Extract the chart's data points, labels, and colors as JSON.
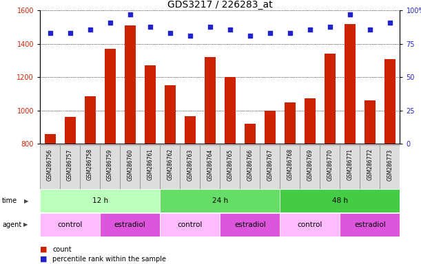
{
  "title": "GDS3217 / 226283_at",
  "samples": [
    "GSM286756",
    "GSM286757",
    "GSM286758",
    "GSM286759",
    "GSM286760",
    "GSM286761",
    "GSM286762",
    "GSM286763",
    "GSM286764",
    "GSM286765",
    "GSM286766",
    "GSM286767",
    "GSM286768",
    "GSM286769",
    "GSM286770",
    "GSM286771",
    "GSM286772",
    "GSM286773"
  ],
  "counts": [
    860,
    960,
    1085,
    1370,
    1510,
    1270,
    1150,
    965,
    1320,
    1200,
    920,
    1000,
    1050,
    1075,
    1340,
    1520,
    1060,
    1310
  ],
  "percentile_ranks": [
    83,
    83,
    86,
    91,
    97,
    88,
    83,
    81,
    88,
    86,
    81,
    83,
    83,
    86,
    88,
    97,
    86,
    91
  ],
  "ylim_left": [
    800,
    1600
  ],
  "ylim_right": [
    0,
    100
  ],
  "yticks_left": [
    800,
    1000,
    1200,
    1400,
    1600
  ],
  "yticks_right": [
    0,
    25,
    50,
    75,
    100
  ],
  "bar_color": "#cc2200",
  "dot_color": "#2222cc",
  "bg_color": "#ffffff",
  "ax_bg_color": "#ffffff",
  "time_groups": [
    {
      "label": "12 h",
      "start": 0,
      "end": 5,
      "color": "#bbffbb"
    },
    {
      "label": "24 h",
      "start": 6,
      "end": 11,
      "color": "#66dd66"
    },
    {
      "label": "48 h",
      "start": 12,
      "end": 17,
      "color": "#44cc44"
    }
  ],
  "agent_groups": [
    {
      "label": "control",
      "start": 0,
      "end": 2,
      "color": "#ffbbff"
    },
    {
      "label": "estradiol",
      "start": 3,
      "end": 5,
      "color": "#dd55dd"
    },
    {
      "label": "control",
      "start": 6,
      "end": 8,
      "color": "#ffbbff"
    },
    {
      "label": "estradiol",
      "start": 9,
      "end": 11,
      "color": "#dd55dd"
    },
    {
      "label": "control",
      "start": 12,
      "end": 14,
      "color": "#ffbbff"
    },
    {
      "label": "estradiol",
      "start": 15,
      "end": 17,
      "color": "#dd55dd"
    }
  ],
  "title_fontsize": 10,
  "tick_fontsize": 7,
  "sample_fontsize": 5.5,
  "row_fontsize": 7.5,
  "legend_fontsize": 7,
  "bar_width": 0.55
}
